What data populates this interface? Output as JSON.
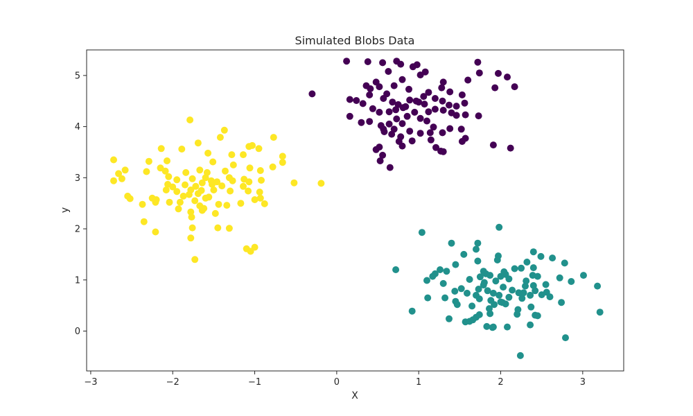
{
  "chart_data": {
    "type": "scatter",
    "title": "Simulated Blobs Data",
    "xlabel": "X",
    "ylabel": "y",
    "xlim": [
      -3.05,
      3.5
    ],
    "ylim": [
      -0.78,
      5.5
    ],
    "xticks": [
      -3,
      -2,
      -1,
      0,
      1,
      2,
      3
    ],
    "xtick_labels": [
      "−3",
      "−2",
      "−1",
      "0",
      "1",
      "2",
      "3"
    ],
    "yticks": [
      0,
      1,
      2,
      3,
      4,
      5
    ],
    "ytick_labels": [
      "0",
      "1",
      "2",
      "3",
      "4",
      "5"
    ],
    "grid": false,
    "legend": false,
    "series": [
      {
        "color": "#440154",
        "points": [
          [
            0.12,
            5.28
          ],
          [
            0.38,
            5.27
          ],
          [
            0.56,
            5.25
          ],
          [
            0.73,
            5.28
          ],
          [
            0.78,
            5.22
          ],
          [
            0.93,
            5.17
          ],
          [
            0.98,
            5.21
          ],
          [
            1.72,
            5.26
          ],
          [
            1.97,
            5.04
          ],
          [
            2.08,
            4.97
          ],
          [
            0.63,
            5.08
          ],
          [
            1.02,
            5.01
          ],
          [
            1.08,
            5.07
          ],
          [
            1.74,
            5.05
          ],
          [
            1.6,
            4.91
          ],
          [
            1.3,
            4.87
          ],
          [
            0.8,
            4.92
          ],
          [
            0.48,
            4.87
          ],
          [
            0.36,
            4.8
          ],
          [
            0.41,
            4.74
          ],
          [
            0.52,
            4.78
          ],
          [
            0.7,
            4.8
          ],
          [
            0.88,
            4.73
          ],
          [
            1.12,
            4.67
          ],
          [
            1.28,
            4.76
          ],
          [
            1.38,
            4.68
          ],
          [
            1.53,
            4.62
          ],
          [
            1.93,
            4.76
          ],
          [
            2.17,
            4.78
          ],
          [
            -0.3,
            4.64
          ],
          [
            0.16,
            4.53
          ],
          [
            0.24,
            4.51
          ],
          [
            0.4,
            4.62
          ],
          [
            0.57,
            4.55
          ],
          [
            0.61,
            4.64
          ],
          [
            0.68,
            4.48
          ],
          [
            0.75,
            4.43
          ],
          [
            0.84,
            4.39
          ],
          [
            0.97,
            4.5
          ],
          [
            1.0,
            4.48
          ],
          [
            1.06,
            4.59
          ],
          [
            1.2,
            4.55
          ],
          [
            1.29,
            4.5
          ],
          [
            1.37,
            4.42
          ],
          [
            1.46,
            4.4
          ],
          [
            1.56,
            4.46
          ],
          [
            0.32,
            4.45
          ],
          [
            0.44,
            4.35
          ],
          [
            0.52,
            4.28
          ],
          [
            0.64,
            4.29
          ],
          [
            0.72,
            4.33
          ],
          [
            0.81,
            4.37
          ],
          [
            0.95,
            4.28
          ],
          [
            1.12,
            4.29
          ],
          [
            1.2,
            4.34
          ],
          [
            1.3,
            4.32
          ],
          [
            1.4,
            4.27
          ],
          [
            1.46,
            4.22
          ],
          [
            1.57,
            4.23
          ],
          [
            1.73,
            4.21
          ],
          [
            0.16,
            4.2
          ],
          [
            0.3,
            4.08
          ],
          [
            0.4,
            4.1
          ],
          [
            0.54,
            4.02
          ],
          [
            0.57,
            3.95
          ],
          [
            0.64,
            4.05
          ],
          [
            0.73,
            4.15
          ],
          [
            0.8,
            4.06
          ],
          [
            0.86,
            4.2
          ],
          [
            1.02,
            4.16
          ],
          [
            1.1,
            4.11
          ],
          [
            1.18,
            3.99
          ],
          [
            1.29,
            3.88
          ],
          [
            1.38,
            3.96
          ],
          [
            1.52,
            3.95
          ],
          [
            0.7,
            3.95
          ],
          [
            0.58,
            3.9
          ],
          [
            0.89,
            3.91
          ],
          [
            1.02,
            3.87
          ],
          [
            1.14,
            3.88
          ],
          [
            0.67,
            3.85
          ],
          [
            0.78,
            3.8
          ],
          [
            0.92,
            3.72
          ],
          [
            1.15,
            3.74
          ],
          [
            1.53,
            3.71
          ],
          [
            1.57,
            3.77
          ],
          [
            0.76,
            3.71
          ],
          [
            0.52,
            3.6
          ],
          [
            0.48,
            3.55
          ],
          [
            0.8,
            3.62
          ],
          [
            1.3,
            3.51
          ],
          [
            1.27,
            3.52
          ],
          [
            0.56,
            3.44
          ],
          [
            0.53,
            3.33
          ],
          [
            0.65,
            3.2
          ],
          [
            1.21,
            3.59
          ],
          [
            1.91,
            3.64
          ],
          [
            2.12,
            3.58
          ],
          [
            0.89,
            4.52
          ],
          [
            1.07,
            4.44
          ]
        ]
      },
      {
        "color": "#21918c",
        "points": [
          [
            1.04,
            1.93
          ],
          [
            1.98,
            2.03
          ],
          [
            1.4,
            1.72
          ],
          [
            1.72,
            1.72
          ],
          [
            2.4,
            1.55
          ],
          [
            1.7,
            1.6
          ],
          [
            1.55,
            1.5
          ],
          [
            1.97,
            1.47
          ],
          [
            2.49,
            1.46
          ],
          [
            2.63,
            1.43
          ],
          [
            1.45,
            1.3
          ],
          [
            1.72,
            1.37
          ],
          [
            1.96,
            1.39
          ],
          [
            2.32,
            1.35
          ],
          [
            2.78,
            1.33
          ],
          [
            0.72,
            1.2
          ],
          [
            1.26,
            1.2
          ],
          [
            1.2,
            1.12
          ],
          [
            1.34,
            1.17
          ],
          [
            1.79,
            1.17
          ],
          [
            2.04,
            1.16
          ],
          [
            2.17,
            1.22
          ],
          [
            2.25,
            1.23
          ],
          [
            2.4,
            1.24
          ],
          [
            1.87,
            1.09
          ],
          [
            1.94,
            0.98
          ],
          [
            2.1,
            1.02
          ],
          [
            2.39,
            1.09
          ],
          [
            2.45,
            1.07
          ],
          [
            3.01,
            1.09
          ],
          [
            1.1,
            0.99
          ],
          [
            1.17,
            1.07
          ],
          [
            1.3,
            0.93
          ],
          [
            1.75,
            1.06
          ],
          [
            1.82,
            1.12
          ],
          [
            2.0,
            1.07
          ],
          [
            2.06,
            1.11
          ],
          [
            2.31,
            0.98
          ],
          [
            2.4,
            0.89
          ],
          [
            2.72,
            1.04
          ],
          [
            2.86,
            0.97
          ],
          [
            1.44,
            0.78
          ],
          [
            1.59,
            0.74
          ],
          [
            1.73,
            0.82
          ],
          [
            1.84,
            0.79
          ],
          [
            1.91,
            0.74
          ],
          [
            2.03,
            0.86
          ],
          [
            2.14,
            0.8
          ],
          [
            2.28,
            0.75
          ],
          [
            2.42,
            0.79
          ],
          [
            2.5,
            0.71
          ],
          [
            2.56,
            0.76
          ],
          [
            3.18,
            0.88
          ],
          [
            1.11,
            0.65
          ],
          [
            1.32,
            0.65
          ],
          [
            1.45,
            0.58
          ],
          [
            1.74,
            0.63
          ],
          [
            1.88,
            0.6
          ],
          [
            1.98,
            0.7
          ],
          [
            2.1,
            0.66
          ],
          [
            2.26,
            0.64
          ],
          [
            2.36,
            0.7
          ],
          [
            2.6,
            0.67
          ],
          [
            2.74,
            0.56
          ],
          [
            0.92,
            0.39
          ],
          [
            1.47,
            0.52
          ],
          [
            1.65,
            0.49
          ],
          [
            1.86,
            0.44
          ],
          [
            1.92,
            0.52
          ],
          [
            2.02,
            0.56
          ],
          [
            2.06,
            0.53
          ],
          [
            2.21,
            0.42
          ],
          [
            2.37,
            0.47
          ],
          [
            1.37,
            0.24
          ],
          [
            1.57,
            0.18
          ],
          [
            1.62,
            0.19
          ],
          [
            1.66,
            0.22
          ],
          [
            1.7,
            0.27
          ],
          [
            1.74,
            0.32
          ],
          [
            1.87,
            0.34
          ],
          [
            2.2,
            0.33
          ],
          [
            2.36,
            0.12
          ],
          [
            2.42,
            0.31
          ],
          [
            2.45,
            0.3
          ],
          [
            1.83,
            0.09
          ],
          [
            1.9,
            0.07
          ],
          [
            1.91,
            0.08
          ],
          [
            2.08,
            0.08
          ],
          [
            2.79,
            -0.13
          ],
          [
            2.24,
            -0.48
          ],
          [
            3.21,
            0.37
          ],
          [
            2.22,
            0.75
          ],
          [
            1.8,
            0.95
          ],
          [
            1.62,
            1.01
          ],
          [
            2.0,
            0.57
          ],
          [
            1.7,
            0.7
          ],
          [
            2.3,
            0.88
          ],
          [
            1.52,
            0.83
          ],
          [
            1.79,
            0.9
          ],
          [
            2.55,
            0.91
          ]
        ]
      },
      {
        "color": "#fde725",
        "points": [
          [
            -1.79,
            4.13
          ],
          [
            -1.37,
            3.93
          ],
          [
            -0.77,
            3.79
          ],
          [
            -1.42,
            3.79
          ],
          [
            -1.03,
            3.63
          ],
          [
            -1.07,
            3.61
          ],
          [
            -1.69,
            3.68
          ],
          [
            -2.14,
            3.57
          ],
          [
            -1.89,
            3.56
          ],
          [
            -1.57,
            3.48
          ],
          [
            -1.28,
            3.45
          ],
          [
            -1.14,
            3.45
          ],
          [
            -0.95,
            3.57
          ],
          [
            -0.66,
            3.42
          ],
          [
            -0.66,
            3.3
          ],
          [
            -0.78,
            3.21
          ],
          [
            -2.72,
            3.35
          ],
          [
            -2.29,
            3.32
          ],
          [
            -2.07,
            3.33
          ],
          [
            -1.51,
            3.31
          ],
          [
            -1.26,
            3.25
          ],
          [
            -1.06,
            3.19
          ],
          [
            -0.93,
            3.14
          ],
          [
            -2.58,
            3.15
          ],
          [
            -2.32,
            3.12
          ],
          [
            -2.15,
            3.19
          ],
          [
            -2.09,
            3.13
          ],
          [
            -1.84,
            3.1
          ],
          [
            -1.67,
            3.15
          ],
          [
            -1.58,
            3.1
          ],
          [
            -1.36,
            3.13
          ],
          [
            -1.31,
            3.0
          ],
          [
            -2.66,
            3.08
          ],
          [
            -2.62,
            2.98
          ],
          [
            -2.72,
            2.94
          ],
          [
            -2.05,
            3.02
          ],
          [
            -1.95,
            2.96
          ],
          [
            -1.76,
            2.98
          ],
          [
            -1.6,
            3.0
          ],
          [
            -1.53,
            2.94
          ],
          [
            -1.46,
            2.92
          ],
          [
            -1.27,
            2.94
          ],
          [
            -1.13,
            2.97
          ],
          [
            -1.07,
            2.92
          ],
          [
            -0.92,
            2.95
          ],
          [
            -0.52,
            2.9
          ],
          [
            -0.19,
            2.89
          ],
          [
            -2.06,
            2.87
          ],
          [
            -1.85,
            2.86
          ],
          [
            -1.72,
            2.83
          ],
          [
            -1.64,
            2.9
          ],
          [
            -1.52,
            2.87
          ],
          [
            -1.4,
            2.84
          ],
          [
            -1.14,
            2.83
          ],
          [
            -2.08,
            2.76
          ],
          [
            -1.95,
            2.73
          ],
          [
            -1.78,
            2.76
          ],
          [
            -1.65,
            2.75
          ],
          [
            -1.5,
            2.76
          ],
          [
            -1.3,
            2.74
          ],
          [
            -1.08,
            2.74
          ],
          [
            -0.94,
            2.72
          ],
          [
            -1.87,
            2.64
          ],
          [
            -1.8,
            2.67
          ],
          [
            -1.69,
            2.69
          ],
          [
            -1.6,
            2.6
          ],
          [
            -2.55,
            2.64
          ],
          [
            -2.52,
            2.59
          ],
          [
            -2.25,
            2.6
          ],
          [
            -2.2,
            2.57
          ],
          [
            -2.04,
            2.52
          ],
          [
            -1.91,
            2.52
          ],
          [
            -1.73,
            2.55
          ],
          [
            -1.67,
            2.45
          ],
          [
            -1.62,
            2.4
          ],
          [
            -1.44,
            2.48
          ],
          [
            -1.34,
            2.46
          ],
          [
            -1.17,
            2.5
          ],
          [
            -1.0,
            2.57
          ],
          [
            -0.93,
            2.6
          ],
          [
            -0.88,
            2.49
          ],
          [
            -2.37,
            2.48
          ],
          [
            -2.21,
            2.52
          ],
          [
            -1.93,
            2.39
          ],
          [
            -1.78,
            2.33
          ],
          [
            -1.64,
            2.36
          ],
          [
            -1.77,
            2.23
          ],
          [
            -1.48,
            2.3
          ],
          [
            -1.76,
            2.02
          ],
          [
            -1.45,
            2.02
          ],
          [
            -1.31,
            2.01
          ],
          [
            -2.35,
            2.14
          ],
          [
            -2.21,
            1.94
          ],
          [
            -1.78,
            1.82
          ],
          [
            -1.1,
            1.61
          ],
          [
            -1.05,
            1.56
          ],
          [
            -1.0,
            1.64
          ],
          [
            -1.73,
            1.4
          ],
          [
            -2.0,
            2.82
          ],
          [
            -1.56,
            2.62
          ]
        ]
      }
    ]
  }
}
